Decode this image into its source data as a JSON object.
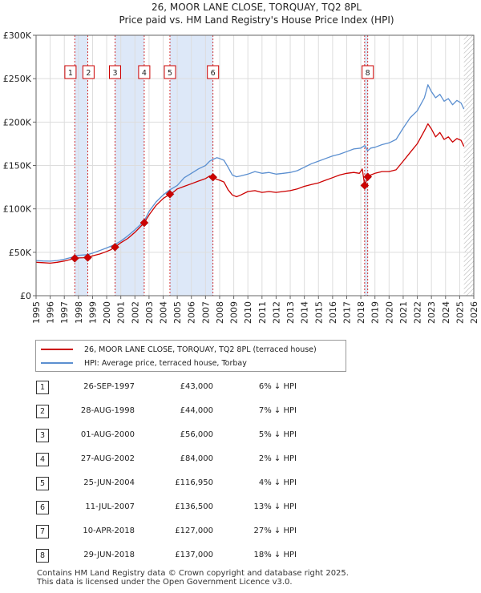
{
  "chart_data": {
    "type": "line",
    "title": "26, MOOR LANE CLOSE, TORQUAY, TQ2 8PL",
    "subtitle": "Price paid vs. HM Land Registry's House Price Index (HPI)",
    "xlim": [
      1995,
      2026
    ],
    "ylim": [
      0,
      300000
    ],
    "x_ticks": [
      1995,
      1996,
      1997,
      1998,
      1999,
      2000,
      2001,
      2002,
      2003,
      2004,
      2005,
      2006,
      2007,
      2008,
      2009,
      2010,
      2011,
      2012,
      2013,
      2014,
      2015,
      2016,
      2017,
      2018,
      2019,
      2020,
      2021,
      2022,
      2023,
      2024,
      2025,
      2026
    ],
    "y_ticks": [
      {
        "value": 0,
        "label": "£0"
      },
      {
        "value": 50000,
        "label": "£50K"
      },
      {
        "value": 100000,
        "label": "£100K"
      },
      {
        "value": 150000,
        "label": "£150K"
      },
      {
        "value": 200000,
        "label": "£200K"
      },
      {
        "value": 250000,
        "label": "£250K"
      },
      {
        "value": 300000,
        "label": "£300K"
      }
    ],
    "grid": true,
    "colors": {
      "property": "#cc0000",
      "hpi": "#5b8fd0",
      "shade": "#dde8f8",
      "marker_line": "#cc0000",
      "hatch": "#999999"
    },
    "series": [
      {
        "name": "26, MOOR LANE CLOSE, TORQUAY, TQ2 8PL (terraced house)",
        "key": "property",
        "points": [
          [
            1995.0,
            38500
          ],
          [
            1995.5,
            38000
          ],
          [
            1996.0,
            37500
          ],
          [
            1996.5,
            38500
          ],
          [
            1997.0,
            40000
          ],
          [
            1997.4,
            41500
          ],
          [
            1997.74,
            43000
          ],
          [
            1998.0,
            43500
          ],
          [
            1998.4,
            43800
          ],
          [
            1998.66,
            44000
          ],
          [
            1999.0,
            46000
          ],
          [
            1999.5,
            48000
          ],
          [
            2000.0,
            51000
          ],
          [
            2000.3,
            53000
          ],
          [
            2000.59,
            56000
          ],
          [
            2001.0,
            61000
          ],
          [
            2001.5,
            66000
          ],
          [
            2002.0,
            73000
          ],
          [
            2002.3,
            78000
          ],
          [
            2002.66,
            84000
          ],
          [
            2003.0,
            93000
          ],
          [
            2003.5,
            104000
          ],
          [
            2004.0,
            112000
          ],
          [
            2004.48,
            116950
          ],
          [
            2004.7,
            119000
          ],
          [
            2005.0,
            123000
          ],
          [
            2005.5,
            126000
          ],
          [
            2006.0,
            129000
          ],
          [
            2006.5,
            132000
          ],
          [
            2007.0,
            135000
          ],
          [
            2007.3,
            138000
          ],
          [
            2007.53,
            136500
          ],
          [
            2007.8,
            134000
          ],
          [
            2008.0,
            133000
          ],
          [
            2008.3,
            131000
          ],
          [
            2008.6,
            122000
          ],
          [
            2008.9,
            116000
          ],
          [
            2009.2,
            114000
          ],
          [
            2009.5,
            116000
          ],
          [
            2010.0,
            120000
          ],
          [
            2010.5,
            121000
          ],
          [
            2011.0,
            119000
          ],
          [
            2011.5,
            120000
          ],
          [
            2012.0,
            119000
          ],
          [
            2012.5,
            120000
          ],
          [
            2013.0,
            121000
          ],
          [
            2013.5,
            123000
          ],
          [
            2014.0,
            126000
          ],
          [
            2014.5,
            128000
          ],
          [
            2015.0,
            130000
          ],
          [
            2015.5,
            133000
          ],
          [
            2016.0,
            136000
          ],
          [
            2016.5,
            139000
          ],
          [
            2017.0,
            141000
          ],
          [
            2017.5,
            142000
          ],
          [
            2017.9,
            141000
          ],
          [
            2018.1,
            146000
          ],
          [
            2018.27,
            127000
          ],
          [
            2018.49,
            137000
          ],
          [
            2018.7,
            139000
          ],
          [
            2019.0,
            141000
          ],
          [
            2019.5,
            143000
          ],
          [
            2020.0,
            143000
          ],
          [
            2020.5,
            145000
          ],
          [
            2021.0,
            155000
          ],
          [
            2021.5,
            165000
          ],
          [
            2022.0,
            175000
          ],
          [
            2022.5,
            190000
          ],
          [
            2022.75,
            198000
          ],
          [
            2023.0,
            192000
          ],
          [
            2023.3,
            183000
          ],
          [
            2023.6,
            188000
          ],
          [
            2023.9,
            180000
          ],
          [
            2024.2,
            183000
          ],
          [
            2024.5,
            177000
          ],
          [
            2024.8,
            181000
          ],
          [
            2025.1,
            179000
          ],
          [
            2025.3,
            172000
          ]
        ]
      },
      {
        "name": "HPI: Average price, terraced house, Torbay",
        "key": "hpi",
        "points": [
          [
            1995.0,
            40500
          ],
          [
            1995.5,
            40000
          ],
          [
            1996.0,
            39800
          ],
          [
            1996.5,
            40500
          ],
          [
            1997.0,
            42000
          ],
          [
            1997.5,
            44000
          ],
          [
            1997.74,
            45800
          ],
          [
            1998.0,
            46500
          ],
          [
            1998.66,
            47300
          ],
          [
            1999.0,
            49000
          ],
          [
            1999.5,
            52000
          ],
          [
            2000.0,
            55000
          ],
          [
            2000.59,
            59000
          ],
          [
            2001.0,
            63000
          ],
          [
            2001.5,
            69000
          ],
          [
            2002.0,
            76000
          ],
          [
            2002.66,
            86000
          ],
          [
            2003.0,
            97000
          ],
          [
            2003.5,
            108000
          ],
          [
            2004.0,
            116000
          ],
          [
            2004.48,
            122000
          ],
          [
            2005.0,
            127000
          ],
          [
            2005.5,
            136000
          ],
          [
            2006.0,
            141000
          ],
          [
            2006.5,
            146000
          ],
          [
            2007.0,
            150000
          ],
          [
            2007.3,
            155000
          ],
          [
            2007.53,
            157000
          ],
          [
            2007.8,
            159000
          ],
          [
            2008.0,
            158000
          ],
          [
            2008.3,
            156000
          ],
          [
            2008.6,
            148000
          ],
          [
            2008.9,
            139000
          ],
          [
            2009.2,
            137000
          ],
          [
            2009.5,
            138000
          ],
          [
            2010.0,
            140000
          ],
          [
            2010.5,
            143000
          ],
          [
            2011.0,
            141000
          ],
          [
            2011.5,
            142000
          ],
          [
            2012.0,
            140000
          ],
          [
            2012.5,
            141000
          ],
          [
            2013.0,
            142000
          ],
          [
            2013.5,
            144000
          ],
          [
            2014.0,
            148000
          ],
          [
            2014.5,
            152000
          ],
          [
            2015.0,
            155000
          ],
          [
            2015.5,
            158000
          ],
          [
            2016.0,
            161000
          ],
          [
            2016.5,
            163000
          ],
          [
            2017.0,
            166000
          ],
          [
            2017.5,
            169000
          ],
          [
            2018.0,
            170000
          ],
          [
            2018.27,
            173000
          ],
          [
            2018.49,
            167000
          ],
          [
            2018.7,
            170000
          ],
          [
            2019.0,
            171000
          ],
          [
            2019.5,
            174000
          ],
          [
            2020.0,
            176000
          ],
          [
            2020.5,
            180000
          ],
          [
            2021.0,
            193000
          ],
          [
            2021.5,
            205000
          ],
          [
            2022.0,
            213000
          ],
          [
            2022.5,
            228000
          ],
          [
            2022.75,
            243000
          ],
          [
            2023.0,
            235000
          ],
          [
            2023.3,
            228000
          ],
          [
            2023.6,
            232000
          ],
          [
            2023.9,
            224000
          ],
          [
            2024.2,
            227000
          ],
          [
            2024.5,
            220000
          ],
          [
            2024.8,
            225000
          ],
          [
            2025.1,
            222000
          ],
          [
            2025.3,
            215000
          ]
        ]
      }
    ],
    "shaded_ranges": [
      [
        1997.74,
        1998.66
      ],
      [
        2000.59,
        2002.66
      ],
      [
        2004.48,
        2007.53
      ],
      [
        2018.27,
        2018.49
      ]
    ],
    "hatched_from": 2025.3,
    "sales": [
      {
        "label": "1",
        "date": "26-SEP-1997",
        "x": 1997.74,
        "price_value": 43000,
        "price": "£43,000",
        "pct": "6% ↓ HPI",
        "box_pos": 0.12
      },
      {
        "label": "2",
        "date": "28-AUG-1998",
        "x": 1998.66,
        "price_value": 44000,
        "price": "£44,000",
        "pct": "7% ↓ HPI",
        "box_pos": 0.57
      },
      {
        "label": "3",
        "date": "01-AUG-2000",
        "x": 2000.59,
        "price_value": 56000,
        "price": "£56,000",
        "pct": "5% ↓ HPI",
        "box_pos": 0.5
      },
      {
        "label": "4",
        "date": "27-AUG-2002",
        "x": 2002.66,
        "price_value": 84000,
        "price": "£84,000",
        "pct": "2% ↓ HPI",
        "box_pos": 0.5
      },
      {
        "label": "5",
        "date": "25-JUN-2004",
        "x": 2004.48,
        "price_value": 116950,
        "price": "£116,950",
        "pct": "4% ↓ HPI",
        "box_pos": 0.5
      },
      {
        "label": "6",
        "date": "11-JUL-2007",
        "x": 2007.53,
        "price_value": 136500,
        "price": "£136,500",
        "pct": "13% ↓ HPI",
        "box_pos": 0.5
      },
      {
        "label": "7",
        "date": "10-APR-2018",
        "x": 2018.27,
        "price_value": 127000,
        "price": "£127,000",
        "pct": "27% ↓ HPI",
        "box_pos": null
      },
      {
        "label": "8",
        "date": "29-JUN-2018",
        "x": 2018.49,
        "price_value": 137000,
        "price": "£137,000",
        "pct": "18% ↓ HPI",
        "box_pos": 0.5
      }
    ]
  },
  "legend": {
    "property_label": "26, MOOR LANE CLOSE, TORQUAY, TQ2 8PL (terraced house)",
    "hpi_label": "HPI: Average price, terraced house, Torbay"
  },
  "footer": {
    "line1": "Contains HM Land Registry data © Crown copyright and database right 2025.",
    "line2": "This data is licensed under the Open Government Licence v3.0."
  }
}
